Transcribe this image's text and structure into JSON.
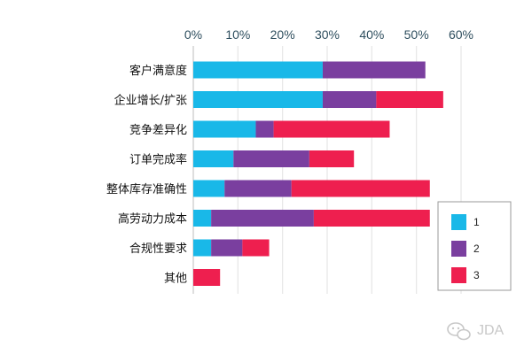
{
  "chart_data": {
    "type": "bar",
    "orientation": "horizontal",
    "stacked": true,
    "categories": [
      "客户满意度",
      "企业增长/扩张",
      "竞争差异化",
      "订单完成率",
      "整体库存准确性",
      "高劳动力成本",
      "合规性要求",
      "其他"
    ],
    "series": [
      {
        "name": "1",
        "color": "#19b8e8",
        "values": [
          29,
          29,
          14,
          9,
          7,
          4,
          4,
          0
        ]
      },
      {
        "name": "2",
        "color": "#7a3f9f",
        "values": [
          23,
          12,
          4,
          17,
          15,
          23,
          7,
          0
        ]
      },
      {
        "name": "3",
        "color": "#ee1f4f",
        "values": [
          0,
          15,
          26,
          10,
          31,
          26,
          6,
          6
        ]
      }
    ],
    "xlim": [
      0,
      60
    ],
    "xticks": [
      "0%",
      "10%",
      "20%",
      "30%",
      "40%",
      "50%",
      "60%"
    ],
    "title": "",
    "xlabel": "",
    "ylabel": "",
    "grid": "vertical",
    "legend_position": "right"
  },
  "watermark": {
    "text": "JDA",
    "icon": "wechat-icon"
  }
}
